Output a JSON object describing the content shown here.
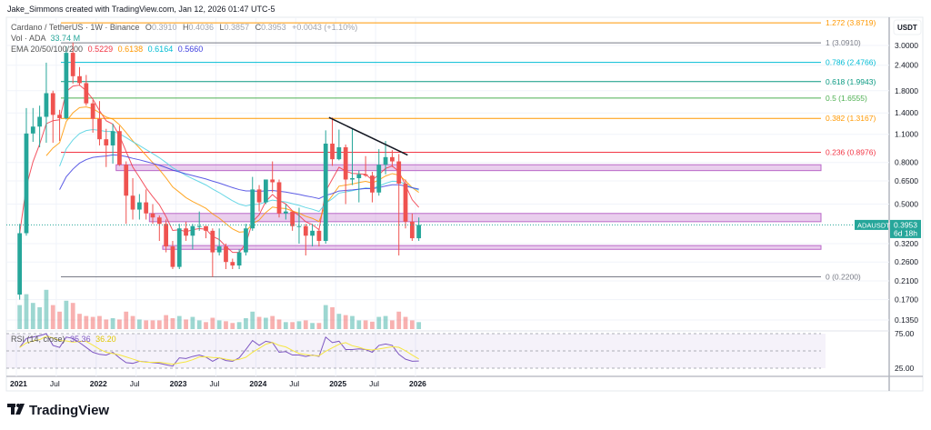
{
  "header": {
    "created_by": "Jake_Simmons created with TradingView.com, Jan 12, 2026 01:47 UTC-5"
  },
  "legend": {
    "symbol": "Cardano / TetherUS · 1W · Binance",
    "o_label": "O",
    "o": "0.3910",
    "h_label": "H",
    "h": "0.4036",
    "l_label": "L",
    "l": "0.3857",
    "c_label": "C",
    "c": "0.3953",
    "change": "+0.0043 (+1.10%)",
    "vol_label": "Vol · ADA",
    "vol": "33.74 M",
    "ema_label": "EMA 20/50/100/200",
    "ema20": "0.5229",
    "ema50": "0.6138",
    "ema100": "0.6164",
    "ema200": "0.5660",
    "rsi_label": "RSI (14, close)",
    "rsi": "35.36",
    "rsi_ma": "36.20"
  },
  "price_badge": {
    "symbol": "ADAUSDT",
    "price": "0.3953",
    "countdown": "6d 18h"
  },
  "currency": "USDT",
  "logo": "TradingView",
  "colors": {
    "up": "#26a69a",
    "down": "#ef5350",
    "ema20": "#f23645",
    "ema50": "#ff9800",
    "ema100": "#4dd0e1",
    "ema200": "#3f3fe0",
    "rsi": "#7e57c2",
    "rsi_ma": "#f5e642",
    "zone": "#ce93d8",
    "trendline": "#131722"
  },
  "chart_data": {
    "type": "candlestick",
    "scale": "log",
    "interval_shown": "1W",
    "ylim": [
      0.12,
      4.2
    ],
    "grid": true,
    "price_ticks": [
      "3.0000",
      "2.4000",
      "1.8000",
      "1.4000",
      "1.1000",
      "0.8000",
      "0.6500",
      "0.5000",
      "0.3200",
      "0.2600",
      "0.2100",
      "0.1700",
      "0.1350"
    ],
    "time_ticks": [
      {
        "label": "2021",
        "t": 2021.0
      },
      {
        "label": "Jul",
        "t": 2021.5
      },
      {
        "label": "2022",
        "t": 2022.0
      },
      {
        "label": "Jul",
        "t": 2022.5
      },
      {
        "label": "2023",
        "t": 2023.0
      },
      {
        "label": "Jul",
        "t": 2023.5
      },
      {
        "label": "2024",
        "t": 2024.0
      },
      {
        "label": "Jul",
        "t": 2024.5
      },
      {
        "label": "2025",
        "t": 2025.0
      },
      {
        "label": "Jul",
        "t": 2025.5
      },
      {
        "label": "2026",
        "t": 2026.0
      }
    ],
    "start": "2021-01",
    "ohlc_monthly": [
      [
        0.18,
        0.4,
        0.17,
        0.36
      ],
      [
        0.36,
        1.48,
        0.35,
        1.11
      ],
      [
        1.11,
        1.48,
        1.01,
        1.2
      ],
      [
        1.2,
        1.52,
        0.95,
        1.34
      ],
      [
        1.34,
        2.47,
        1.0,
        1.75
      ],
      [
        1.75,
        1.8,
        1.0,
        1.37
      ],
      [
        1.37,
        1.45,
        1.02,
        1.32
      ],
      [
        1.32,
        2.97,
        1.3,
        2.76
      ],
      [
        2.76,
        3.1,
        1.95,
        2.12
      ],
      [
        2.12,
        2.35,
        1.9,
        1.96
      ],
      [
        1.96,
        2.15,
        1.52,
        1.56
      ],
      [
        1.56,
        1.62,
        1.12,
        1.31
      ],
      [
        1.31,
        1.6,
        0.97,
        1.04
      ],
      [
        1.04,
        1.17,
        0.76,
        0.97
      ],
      [
        0.97,
        1.24,
        0.79,
        1.14
      ],
      [
        1.14,
        1.21,
        0.77,
        0.78
      ],
      [
        0.78,
        0.81,
        0.4,
        0.55
      ],
      [
        0.55,
        0.67,
        0.42,
        0.47
      ],
      [
        0.47,
        0.56,
        0.42,
        0.51
      ],
      [
        0.51,
        0.59,
        0.42,
        0.45
      ],
      [
        0.45,
        0.5,
        0.4,
        0.43
      ],
      [
        0.43,
        0.44,
        0.33,
        0.4
      ],
      [
        0.4,
        0.42,
        0.29,
        0.31
      ],
      [
        0.31,
        0.33,
        0.24,
        0.246
      ],
      [
        0.246,
        0.4,
        0.24,
        0.38
      ],
      [
        0.38,
        0.41,
        0.33,
        0.35
      ],
      [
        0.35,
        0.4,
        0.3,
        0.39
      ],
      [
        0.39,
        0.46,
        0.37,
        0.39
      ],
      [
        0.39,
        0.39,
        0.34,
        0.37
      ],
      [
        0.37,
        0.38,
        0.22,
        0.29
      ],
      [
        0.29,
        0.38,
        0.28,
        0.31
      ],
      [
        0.31,
        0.32,
        0.24,
        0.26
      ],
      [
        0.26,
        0.27,
        0.24,
        0.25
      ],
      [
        0.25,
        0.3,
        0.24,
        0.29
      ],
      [
        0.29,
        0.4,
        0.28,
        0.38
      ],
      [
        0.38,
        0.68,
        0.37,
        0.59
      ],
      [
        0.59,
        0.62,
        0.46,
        0.51
      ],
      [
        0.51,
        0.66,
        0.5,
        0.66
      ],
      [
        0.66,
        0.81,
        0.57,
        0.64
      ],
      [
        0.64,
        0.66,
        0.43,
        0.45
      ],
      [
        0.45,
        0.5,
        0.42,
        0.46
      ],
      [
        0.46,
        0.46,
        0.37,
        0.39
      ],
      [
        0.39,
        0.48,
        0.32,
        0.39
      ],
      [
        0.39,
        0.4,
        0.28,
        0.35
      ],
      [
        0.35,
        0.4,
        0.31,
        0.37
      ],
      [
        0.37,
        0.38,
        0.31,
        0.33
      ],
      [
        0.33,
        1.15,
        0.32,
        0.99
      ],
      [
        0.99,
        1.33,
        0.77,
        0.83
      ],
      [
        0.83,
        1.16,
        0.82,
        0.95
      ],
      [
        0.95,
        0.98,
        0.5,
        0.66
      ],
      [
        0.66,
        1.17,
        0.62,
        0.67
      ],
      [
        0.67,
        0.73,
        0.51,
        0.7
      ],
      [
        0.7,
        0.86,
        0.68,
        0.69
      ],
      [
        0.69,
        0.72,
        0.51,
        0.57
      ],
      [
        0.57,
        0.93,
        0.55,
        0.78
      ],
      [
        0.78,
        1.02,
        0.7,
        0.85
      ],
      [
        0.85,
        0.92,
        0.76,
        0.81
      ],
      [
        0.81,
        0.88,
        0.28,
        0.63
      ],
      [
        0.63,
        0.66,
        0.38,
        0.41
      ],
      [
        0.41,
        0.45,
        0.33,
        0.34
      ],
      [
        0.34,
        0.43,
        0.33,
        0.3953
      ]
    ],
    "volume_relative": [
      0.55,
      0.8,
      0.6,
      0.5,
      0.9,
      0.55,
      0.4,
      0.65,
      0.6,
      0.35,
      0.3,
      0.28,
      0.3,
      0.22,
      0.25,
      0.22,
      0.4,
      0.3,
      0.22,
      0.2,
      0.2,
      0.2,
      0.32,
      0.25,
      0.3,
      0.22,
      0.28,
      0.2,
      0.16,
      0.26,
      0.2,
      0.18,
      0.14,
      0.16,
      0.25,
      0.4,
      0.28,
      0.26,
      0.3,
      0.22,
      0.16,
      0.16,
      0.18,
      0.2,
      0.14,
      0.14,
      0.55,
      0.5,
      0.35,
      0.32,
      0.3,
      0.2,
      0.2,
      0.17,
      0.28,
      0.3,
      0.2,
      0.4,
      0.28,
      0.2,
      0.16
    ],
    "rsi_monthly": [
      55,
      68,
      70,
      72,
      75,
      58,
      55,
      70,
      68,
      62,
      55,
      48,
      45,
      44,
      48,
      40,
      33,
      32,
      35,
      34,
      33,
      32,
      30,
      28,
      40,
      39,
      42,
      44,
      41,
      35,
      40,
      36,
      35,
      40,
      52,
      65,
      58,
      64,
      62,
      48,
      49,
      44,
      44,
      42,
      44,
      42,
      70,
      62,
      64,
      52,
      52,
      53,
      52,
      48,
      58,
      60,
      58,
      45,
      38,
      35,
      35.36
    ],
    "rsi_levels": [
      75,
      50,
      25
    ],
    "fib_levels": [
      {
        "label": "1.272 (3.8719)",
        "price": 3.8719,
        "color": "#ff9800"
      },
      {
        "label": "1 (3.0910)",
        "price": 3.091,
        "color": "#787b86"
      },
      {
        "label": "0.786 (2.4766)",
        "price": 2.4766,
        "color": "#00bcd4"
      },
      {
        "label": "0.618 (1.9943)",
        "price": 1.9943,
        "color": "#089981"
      },
      {
        "label": "0.5 (1.6555)",
        "price": 1.6555,
        "color": "#4caf50"
      },
      {
        "label": "0.382 (1.3167)",
        "price": 1.3167,
        "color": "#ff9800"
      },
      {
        "label": "0.236 (0.8976)",
        "price": 0.8976,
        "color": "#f23645"
      },
      {
        "label": "0 (0.2200)",
        "price": 0.22,
        "color": "#787b86"
      }
    ],
    "zones": [
      {
        "from": "2022-04",
        "low": 0.73,
        "high": 0.78
      },
      {
        "from": "2022-09",
        "low": 0.41,
        "high": 0.45
      },
      {
        "from": "2022-11",
        "low": 0.3,
        "high": 0.313
      }
    ],
    "trendline": {
      "from": "2024-12",
      "from_price": 1.33,
      "to": "2025-11",
      "to_price": 0.87
    }
  }
}
